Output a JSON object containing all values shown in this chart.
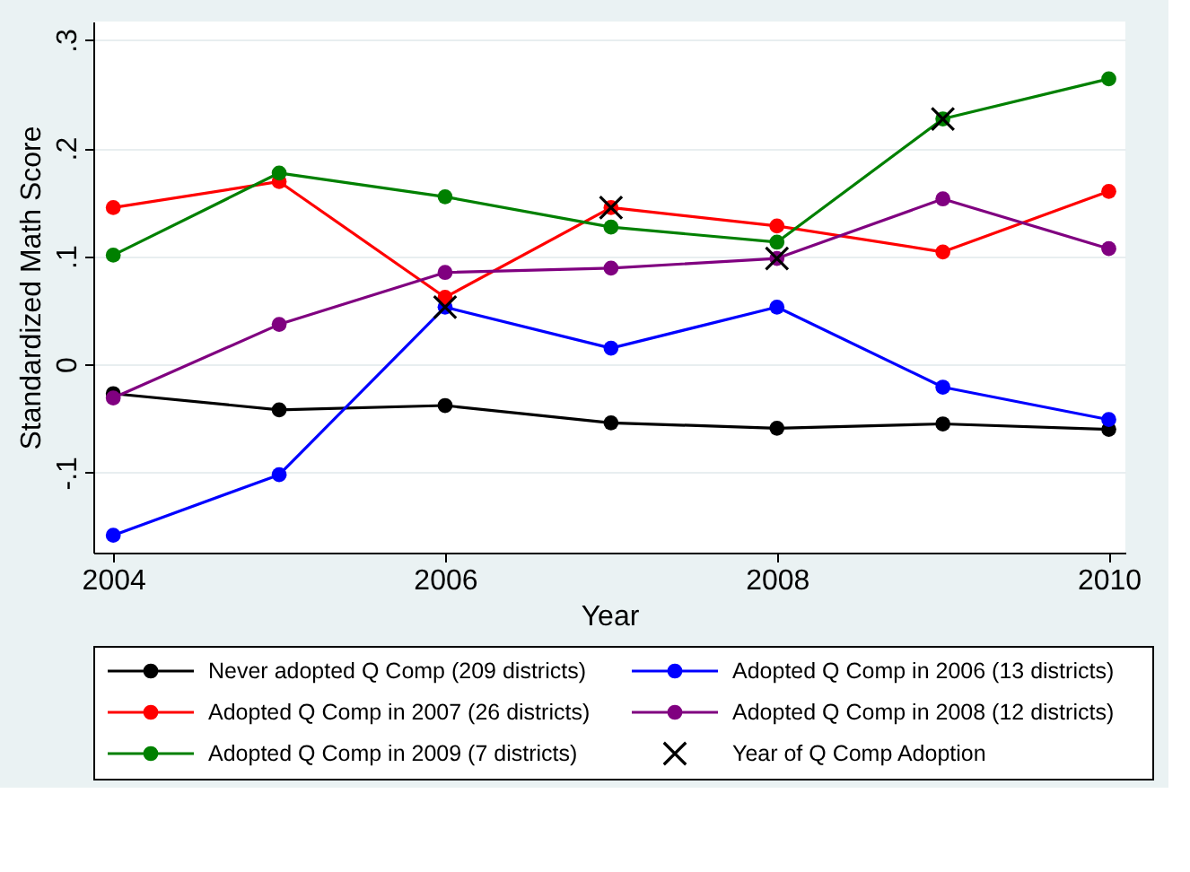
{
  "chart_data": {
    "type": "line",
    "xlabel": "Year",
    "ylabel": "Standardized Math Score",
    "x": [
      2004,
      2005,
      2006,
      2007,
      2008,
      2009,
      2010
    ],
    "xlim": [
      2003.88,
      2010.1
    ],
    "xticks": [
      2004,
      2006,
      2008,
      2010
    ],
    "ylim": [
      -0.174,
      0.317
    ],
    "yticks": [
      {
        "value": -0.1,
        "label": "-.1"
      },
      {
        "value": 0,
        "label": "0"
      },
      {
        "value": 0.1,
        "label": ".1"
      },
      {
        "value": 0.2,
        "label": ".2"
      },
      {
        "value": 0.3,
        "label": ".3"
      }
    ],
    "grid": "y",
    "legend": "bottom",
    "marker": "circle",
    "line_style": "solid",
    "series": [
      {
        "name": "Never adopted Q Comp (209 districts)",
        "color": "#000000",
        "values": [
          -0.027,
          -0.042,
          -0.038,
          -0.054,
          -0.059,
          -0.055,
          -0.06
        ]
      },
      {
        "name": "Adopted Q Comp in 2006 (13 districts)",
        "color": "#0000ff",
        "values": [
          -0.158,
          -0.102,
          0.053,
          0.015,
          0.053,
          -0.021,
          -0.051
        ]
      },
      {
        "name": "Adopted Q Comp in 2007 (26 districts)",
        "color": "#ff0000",
        "values": [
          0.145,
          0.169,
          0.062,
          0.145,
          0.128,
          0.104,
          0.16
        ]
      },
      {
        "name": "Adopted Q Comp in 2008 (12 districts)",
        "color": "#800080",
        "values": [
          -0.031,
          0.037,
          0.085,
          0.089,
          0.098,
          0.153,
          0.107
        ]
      },
      {
        "name": "Adopted Q Comp in 2009 (7 districts)",
        "color": "#008000",
        "values": [
          0.101,
          0.177,
          0.155,
          0.127,
          0.113,
          0.227,
          0.264
        ]
      },
      {
        "name": "Year of Q Comp Adoption",
        "type": "scatter",
        "marker": "cross",
        "color": "#000000",
        "x": [
          2006,
          2007,
          2008,
          2009
        ],
        "values": [
          0.053,
          0.145,
          0.098,
          0.227
        ]
      }
    ]
  }
}
